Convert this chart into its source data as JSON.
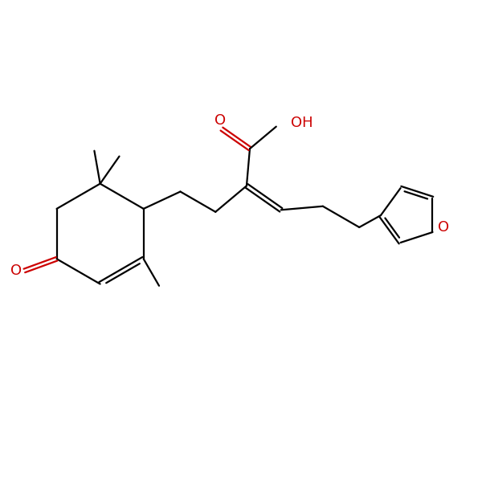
{
  "background": "#ffffff",
  "bond_color": "#000000",
  "oxygen_color": "#cc0000",
  "bond_width": 1.6,
  "figsize": [
    6.0,
    6.0
  ],
  "dpi": 100,
  "xlim": [
    0,
    10
  ],
  "ylim": [
    0,
    10
  ]
}
